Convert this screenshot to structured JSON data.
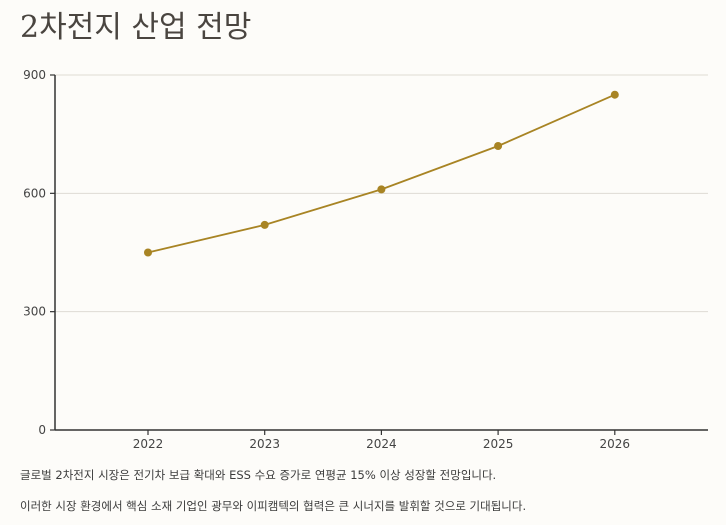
{
  "title": "2차전지 산업 전망",
  "chart_data": {
    "type": "line",
    "x": [
      "2022",
      "2023",
      "2024",
      "2025",
      "2026"
    ],
    "series": [
      {
        "values": [
          450,
          520,
          610,
          720,
          850
        ]
      }
    ],
    "ylim": [
      0,
      900
    ],
    "yticks": [
      0,
      300,
      600,
      900
    ],
    "grid": true,
    "line_color": "#a88424",
    "xlabel": "",
    "ylabel": ""
  },
  "notes": [
    "글로벌 2차전지 시장은 전기차 보급 확대와 ESS 수요 증가로 연평균 15% 이상 성장할 전망입니다.",
    "이러한 시장 환경에서 핵심 소재 기업인 광무와 이피캠텍의 협력은 큰 시너지를 발휘할 것으로 기대됩니다."
  ]
}
